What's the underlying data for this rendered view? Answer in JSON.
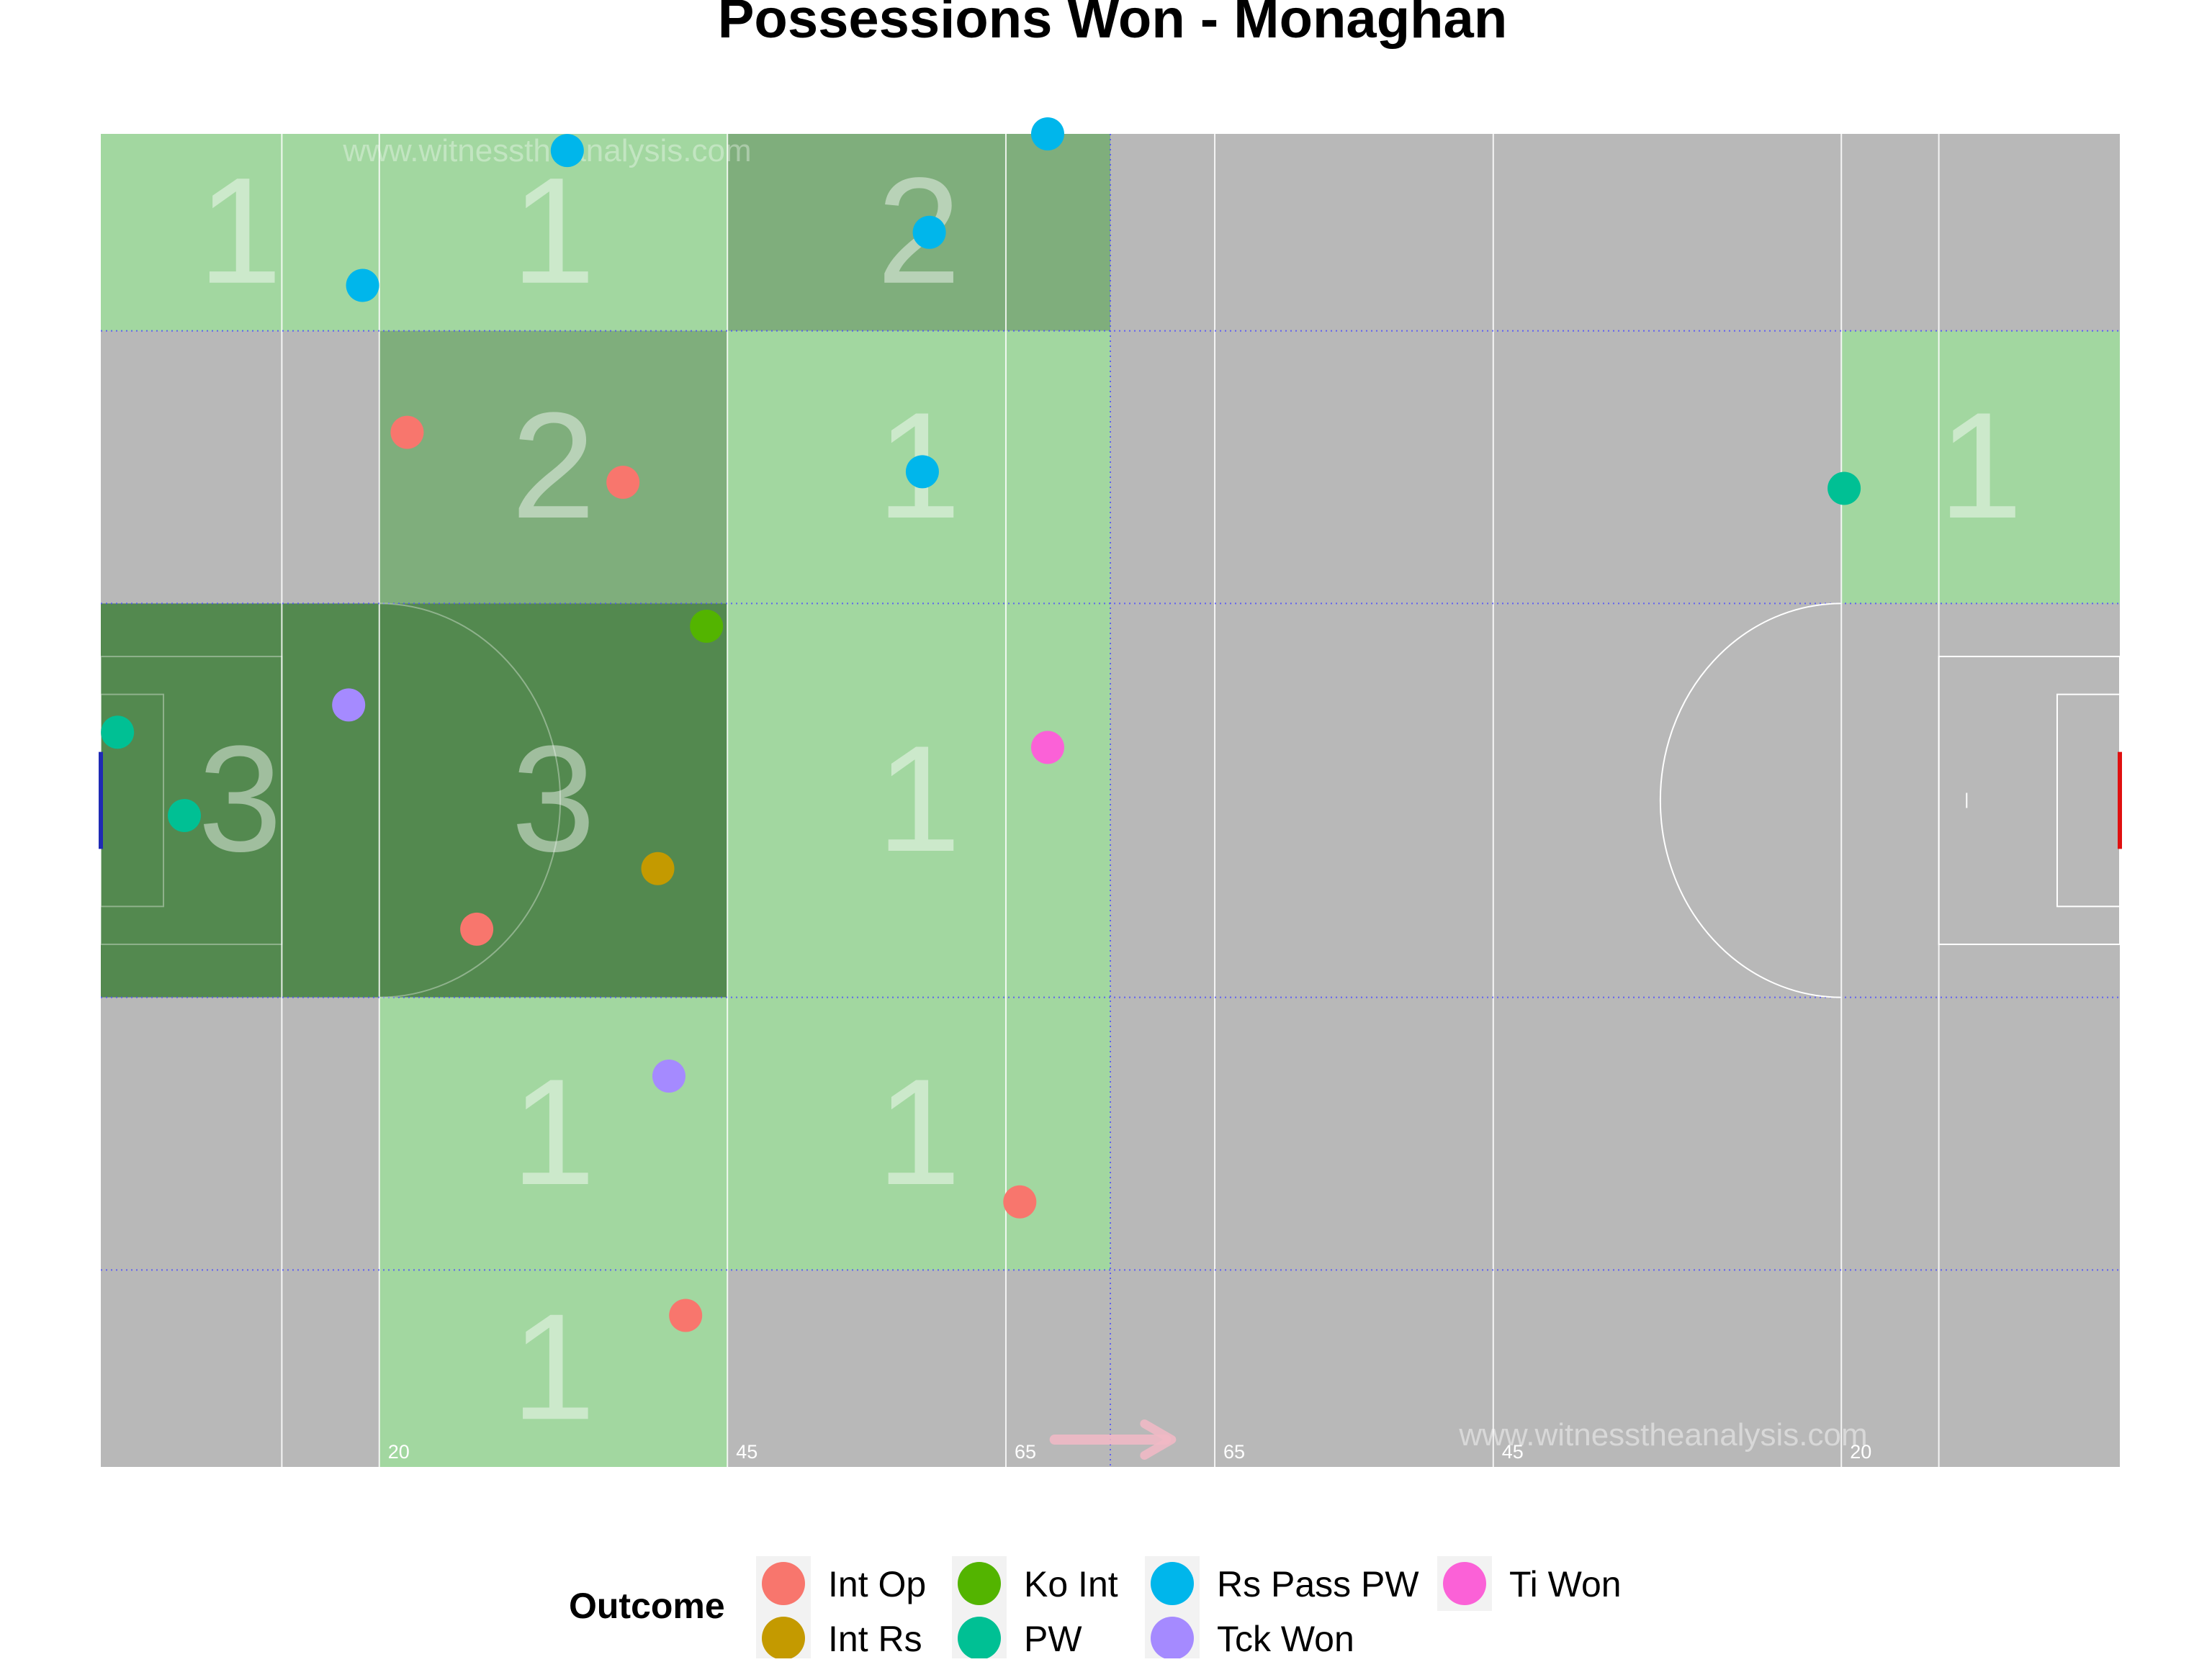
{
  "chart_data": {
    "type": "scatter",
    "title": "Possessions Won - Monaghan",
    "watermark": "www.witnesstheanalysis.com",
    "field": {
      "x_range": [
        0,
        145
      ],
      "y_range": [
        0,
        88
      ],
      "line_markers": [
        {
          "x": 13,
          "label": ""
        },
        {
          "x": 20,
          "label": "20"
        },
        {
          "x": 45,
          "label": "45"
        },
        {
          "x": 65,
          "label": "65"
        },
        {
          "x": 80,
          "label": "65"
        },
        {
          "x": 100,
          "label": "45"
        },
        {
          "x": 125,
          "label": "20"
        },
        {
          "x": 132,
          "label": ""
        }
      ],
      "zone_x_edges": [
        0,
        20,
        45,
        72.5,
        145
      ],
      "zone_y_edges": [
        0,
        13,
        31,
        57,
        75,
        88
      ]
    },
    "zones": [
      {
        "x0": 0,
        "x1": 20,
        "y0": 75,
        "y1": 88,
        "count": 1
      },
      {
        "x0": 20,
        "x1": 45,
        "y0": 75,
        "y1": 88,
        "count": 1
      },
      {
        "x0": 45,
        "x1": 72.5,
        "y0": 75,
        "y1": 88,
        "count": 2
      },
      {
        "x0": 20,
        "x1": 45,
        "y0": 57,
        "y1": 75,
        "count": 2
      },
      {
        "x0": 45,
        "x1": 72.5,
        "y0": 57,
        "y1": 75,
        "count": 1
      },
      {
        "x0": 125,
        "x1": 145,
        "y0": 57,
        "y1": 75,
        "count": 1
      },
      {
        "x0": 0,
        "x1": 20,
        "y0": 31,
        "y1": 57,
        "count": 3
      },
      {
        "x0": 20,
        "x1": 45,
        "y0": 31,
        "y1": 57,
        "count": 3
      },
      {
        "x0": 45,
        "x1": 72.5,
        "y0": 31,
        "y1": 57,
        "count": 1
      },
      {
        "x0": 20,
        "x1": 45,
        "y0": 13,
        "y1": 31,
        "count": 1
      },
      {
        "x0": 45,
        "x1": 72.5,
        "y0": 13,
        "y1": 31,
        "count": 1
      },
      {
        "x0": 20,
        "x1": 45,
        "y0": 0,
        "y1": 13,
        "count": 1
      }
    ],
    "series": [
      {
        "name": "Int Op",
        "color": "#F8766D",
        "points": [
          [
            22,
            68.3
          ],
          [
            37.5,
            65
          ],
          [
            27,
            35.5
          ],
          [
            66,
            17.5
          ],
          [
            42,
            10
          ]
        ]
      },
      {
        "name": "Int Rs",
        "color": "#C49A00",
        "points": [
          [
            40,
            39.5
          ]
        ]
      },
      {
        "name": "Ko Int",
        "color": "#53B400",
        "points": [
          [
            43.5,
            55.5
          ]
        ]
      },
      {
        "name": "PW",
        "color": "#00C094",
        "points": [
          [
            1.2,
            48.5
          ],
          [
            6,
            43
          ],
          [
            125.2,
            64.6
          ]
        ]
      },
      {
        "name": "Rs Pass PW",
        "color": "#00B6EB",
        "points": [
          [
            33.5,
            86.9
          ],
          [
            68,
            88
          ],
          [
            18.8,
            78
          ],
          [
            59.5,
            81.5
          ],
          [
            59,
            65.7
          ]
        ]
      },
      {
        "name": "Tck Won",
        "color": "#A58AFF",
        "points": [
          [
            17.8,
            50.3
          ],
          [
            40.8,
            25.8
          ]
        ]
      },
      {
        "name": "Ti Won",
        "color": "#FB61D7",
        "points": [
          [
            68,
            47.5
          ]
        ]
      }
    ],
    "legend": {
      "title": "Outcome",
      "position": "bottom",
      "columns": [
        [
          "Int Op",
          "Int Rs"
        ],
        [
          "Ko Int",
          "PW"
        ],
        [
          "Rs Pass PW",
          "Tck Won"
        ],
        [
          "Ti Won"
        ]
      ]
    },
    "colors": {
      "field": "#b8b8b8",
      "zone_light": "#a2d7a0",
      "zone_mid": "#7fae7c",
      "zone_dark": "#53894f",
      "zone_line": "#4a4aff",
      "left_goal": "#1f2ab5",
      "right_goal": "#e01010"
    }
  }
}
